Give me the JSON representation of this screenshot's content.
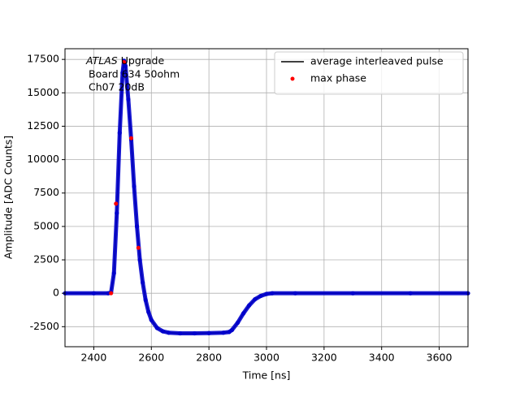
{
  "chart_data": {
    "type": "line",
    "xlabel": "Time [ns]",
    "ylabel": "Amplitude [ADC Counts]",
    "annotation": {
      "italic": "ATLAS",
      "text": "Upgrade",
      "lines": [
        "Board 634 50ohm",
        "Ch07 20dB"
      ]
    },
    "xlim": [
      2300,
      3700
    ],
    "ylim": [
      -4000,
      18300
    ],
    "xticks": [
      2400,
      2600,
      2800,
      3000,
      3200,
      3400,
      3600
    ],
    "yticks": [
      -2500,
      0,
      2500,
      5000,
      7500,
      10000,
      12500,
      15000,
      17500
    ],
    "grid": true,
    "legend": "upper right",
    "series": [
      {
        "name": "average interleaved pulse",
        "color": "#000000",
        "mode": "line",
        "x": [
          2300,
          2400,
          2450,
          2460,
          2470,
          2480,
          2490,
          2500,
          2505,
          2510,
          2520,
          2530,
          2540,
          2550,
          2560,
          2570,
          2580,
          2590,
          2600,
          2620,
          2640,
          2660,
          2700,
          2750,
          2800,
          2850,
          2870,
          2880,
          2900,
          2920,
          2940,
          2960,
          2980,
          3000,
          3020,
          3100,
          3300,
          3500,
          3700
        ],
        "values": [
          0,
          0,
          0,
          50,
          1500,
          6000,
          12000,
          16500,
          17400,
          17000,
          14500,
          11500,
          8000,
          5000,
          2500,
          800,
          -500,
          -1400,
          -2000,
          -2600,
          -2850,
          -2950,
          -3000,
          -3000,
          -2980,
          -2950,
          -2900,
          -2750,
          -2200,
          -1500,
          -900,
          -450,
          -200,
          -50,
          0,
          0,
          0,
          0,
          0
        ]
      },
      {
        "color": "#0000cc",
        "mode": "markers",
        "x": [
          2300,
          2400,
          2450,
          2460,
          2470,
          2480,
          2490,
          2500,
          2505,
          2510,
          2520,
          2530,
          2540,
          2550,
          2560,
          2570,
          2580,
          2590,
          2600,
          2620,
          2640,
          2660,
          2700,
          2750,
          2800,
          2850,
          2870,
          2880,
          2900,
          2920,
          2940,
          2960,
          2980,
          3000,
          3020,
          3100,
          3300,
          3500,
          3700
        ],
        "values": [
          0,
          0,
          0,
          50,
          1500,
          6000,
          12000,
          16500,
          17400,
          17000,
          14500,
          11500,
          8000,
          5000,
          2500,
          800,
          -500,
          -1400,
          -2000,
          -2600,
          -2850,
          -2950,
          -3000,
          -3000,
          -2980,
          -2950,
          -2900,
          -2750,
          -2200,
          -1500,
          -900,
          -450,
          -200,
          -50,
          0,
          0,
          0,
          0,
          0
        ]
      },
      {
        "name": "max phase",
        "color": "#ff0000",
        "mode": "points",
        "x": [
          2460,
          2477,
          2505,
          2530,
          2555
        ],
        "values": [
          0,
          6700,
          17300,
          11600,
          3400
        ]
      }
    ]
  }
}
